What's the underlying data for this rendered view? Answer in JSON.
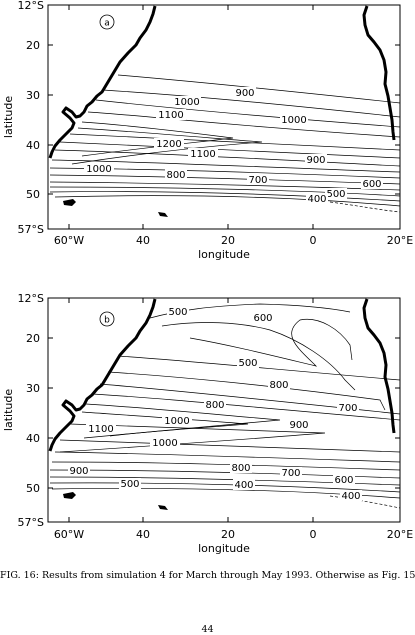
{
  "panels": [
    {
      "id": "a",
      "label": "a",
      "ylabel": "latitude",
      "xlabel": "longitude",
      "yticks": [
        "12°S",
        "20",
        "30",
        "40",
        "50",
        "57°S"
      ],
      "xticks": [
        "60°W",
        "40",
        "20",
        "0",
        "20°E"
      ],
      "contour_labels": [
        "900",
        "1000",
        "1100",
        "1000",
        "1200",
        "1100",
        "900",
        "1000",
        "800",
        "700",
        "600",
        "500",
        "400"
      ]
    },
    {
      "id": "b",
      "label": "b",
      "ylabel": "latitude",
      "xlabel": "longitude",
      "yticks": [
        "12°S",
        "20",
        "30",
        "40",
        "50",
        "57°S"
      ],
      "xticks": [
        "60°W",
        "40",
        "20",
        "0",
        "20°E"
      ],
      "contour_labels": [
        "500",
        "600",
        "500",
        "800",
        "700",
        "800",
        "900",
        "1000",
        "1100",
        "1000",
        "800",
        "700",
        "600",
        "900",
        "500",
        "400",
        "400"
      ]
    }
  ],
  "caption": "FIG. 16: Results from simulation 4 for March through May 1993. Otherwise as Fig. 15.",
  "page_number": "44"
}
